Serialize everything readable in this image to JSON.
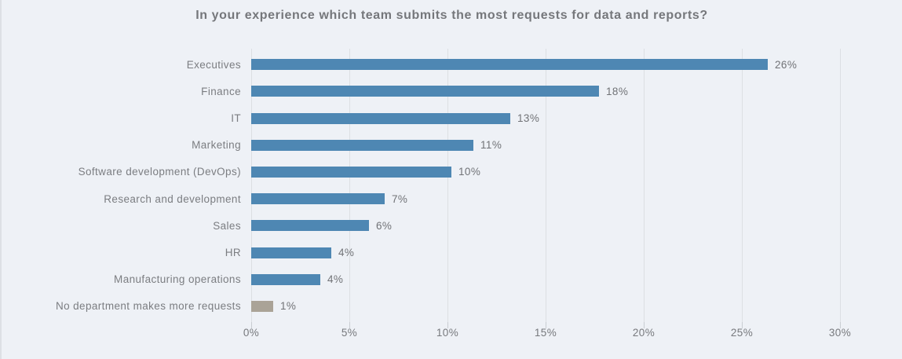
{
  "title": "In your experience which team submits the most requests for data and reports?",
  "colors": {
    "background": "#eef1f6",
    "bar_primary": "#4e87b3",
    "bar_muted": "#aaa397",
    "gridline": "#dcdfe3",
    "title_text": "#75777b",
    "category_text": "#7b7d81",
    "value_text": "#717377"
  },
  "chart_data": {
    "type": "bar",
    "orientation": "horizontal",
    "title": "In your experience which team submits the most requests for data and reports?",
    "categories": [
      "Executives",
      "Finance",
      "IT",
      "Marketing",
      "Software development (DevOps)",
      "Research and development",
      "Sales",
      "HR",
      "Manufacturing operations",
      "No department makes more requests"
    ],
    "values": [
      26,
      18,
      13,
      11,
      10,
      7,
      6,
      4,
      4,
      1
    ],
    "value_labels": [
      "26%",
      "18%",
      "13%",
      "11%",
      "10%",
      "7%",
      "6%",
      "4%",
      "4%",
      "1%"
    ],
    "bar_lengths_pct": [
      26.3,
      17.7,
      13.2,
      11.3,
      10.2,
      6.8,
      6.0,
      4.1,
      3.5,
      1.1
    ],
    "bar_colors": [
      "#4e87b3",
      "#4e87b3",
      "#4e87b3",
      "#4e87b3",
      "#4e87b3",
      "#4e87b3",
      "#4e87b3",
      "#4e87b3",
      "#4e87b3",
      "#aaa397"
    ],
    "xlabel": "",
    "ylabel": "",
    "x_ticks": [
      "0%",
      "5%",
      "10%",
      "15%",
      "20%",
      "25%",
      "30%"
    ],
    "x_tick_values": [
      0,
      5,
      10,
      15,
      20,
      25,
      30
    ],
    "xlim": [
      0,
      30
    ],
    "grid": "vertical",
    "legend": "none",
    "data_labels": "outside-end"
  }
}
